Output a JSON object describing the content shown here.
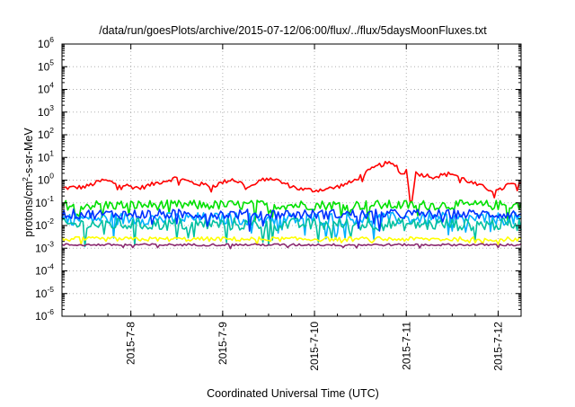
{
  "chart_data": {
    "type": "line",
    "title": "/data/run/goesPlots/archive/2015-07-12/06:00/flux/../flux/5daysMoonFluxes.txt",
    "xlabel": "Coordinated Universal Time (UTC)",
    "ylabel": {
      "prefix": "protons/cm",
      "sup": "2",
      "suffix": "-s-sr-MeV"
    },
    "y_scale": "log",
    "ylim_exponent": [
      -6,
      6
    ],
    "y_tick_base": "10",
    "y_tick_exponents": [
      "-6",
      "-5",
      "-4",
      "-3",
      "-2",
      "-1",
      "0",
      "1",
      "2",
      "3",
      "4",
      "5",
      "6"
    ],
    "x_range_days": [
      "2015-07-07T06:00",
      "2015-07-12T06:00"
    ],
    "x_ticks": [
      {
        "label": "2015-7-8"
      },
      {
        "label": "2015-7-9"
      },
      {
        "label": "2015-7-10"
      },
      {
        "label": "2015-7-11"
      },
      {
        "label": "2015-7-12"
      }
    ],
    "grid": true,
    "legend": "none",
    "series": [
      {
        "color": "#ff0000",
        "anchors_day": [
          7.25,
          7.5,
          7.7,
          7.9,
          8.1,
          8.3,
          8.5,
          8.7,
          8.9,
          9.1,
          9.3,
          9.5,
          9.7,
          9.85,
          10.0,
          10.2,
          10.4,
          10.55,
          10.7,
          10.8,
          10.9,
          10.95,
          11.0,
          11.05,
          11.1,
          11.3,
          11.5,
          11.7,
          11.9,
          12.0,
          12.1,
          12.25
        ],
        "anchors_log10": [
          -0.35,
          -0.3,
          0.0,
          -0.2,
          -0.35,
          -0.1,
          0.1,
          -0.15,
          -0.25,
          0.05,
          -0.3,
          0.15,
          -0.2,
          -0.4,
          -0.45,
          -0.35,
          -0.1,
          0.3,
          0.65,
          0.75,
          0.6,
          0.2,
          0.45,
          -1.2,
          0.3,
          0.15,
          0.3,
          -0.1,
          -0.4,
          -0.5,
          -0.2,
          -0.2
        ],
        "noise": 0.1
      },
      {
        "color": "#00e000",
        "anchors_day": [
          7.25,
          12.25
        ],
        "anchors_log10": [
          -1.1,
          -1.1
        ],
        "noise": 0.22
      },
      {
        "color": "#00b0ff",
        "anchors_day": [
          7.25,
          12.25
        ],
        "anchors_log10": [
          -1.7,
          -1.7
        ],
        "noise": 0.28
      },
      {
        "color": "#00c0a0",
        "anchors_day": [
          7.25,
          12.25
        ],
        "anchors_log10": [
          -1.95,
          -1.95
        ],
        "noise": 0.28
      },
      {
        "color": "#0030ff",
        "anchors_day": [
          7.25,
          12.25
        ],
        "anchors_log10": [
          -1.5,
          -1.5
        ],
        "noise": 0.22
      },
      {
        "color": "#ffff00",
        "anchors_day": [
          7.25,
          12.25
        ],
        "anchors_log10": [
          -2.6,
          -2.6
        ],
        "noise": 0.1
      },
      {
        "color": "#8b2a70",
        "anchors_day": [
          7.25,
          12.25
        ],
        "anchors_log10": [
          -2.85,
          -2.85
        ],
        "noise": 0.05
      }
    ]
  }
}
